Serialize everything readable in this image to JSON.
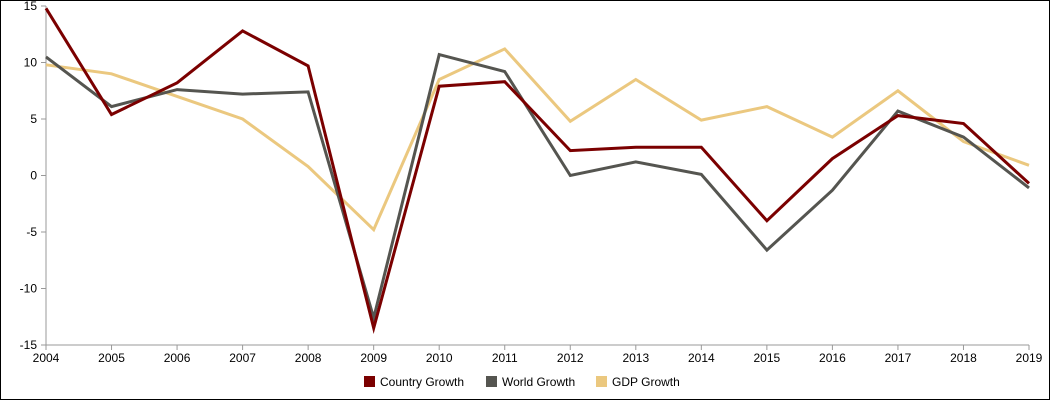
{
  "chart_data": {
    "type": "line",
    "x": [
      "2004",
      "2005",
      "2006",
      "2007",
      "2008",
      "2009",
      "2010",
      "2011",
      "2012",
      "2013",
      "2014",
      "2015",
      "2016",
      "2017",
      "2018",
      "2019"
    ],
    "ylim": [
      -15,
      15
    ],
    "yticks": [
      15,
      10,
      5,
      0,
      -5,
      -10,
      -15
    ],
    "ytick_labels": [
      "15",
      "10",
      "5",
      "0",
      "-5",
      "-10",
      "-15"
    ],
    "grid": false,
    "legend_position": "bottom",
    "series": [
      {
        "name": "Country Growth",
        "color": "#7b0000",
        "values": [
          14.8,
          5.4,
          8.2,
          12.8,
          9.7,
          -13.5,
          7.9,
          8.3,
          2.2,
          2.5,
          2.5,
          -4.0,
          1.5,
          5.3,
          4.6,
          -0.7
        ]
      },
      {
        "name": "World Growth",
        "color": "#555550",
        "values": [
          10.5,
          6.1,
          7.6,
          7.2,
          7.4,
          -12.6,
          10.7,
          9.2,
          0.0,
          1.2,
          0.1,
          -6.6,
          -1.3,
          5.7,
          3.4,
          -1.1
        ]
      },
      {
        "name": "GDP Growth",
        "color": "#ebc87f",
        "values": [
          9.8,
          9.0,
          7.0,
          5.0,
          0.8,
          -4.8,
          8.5,
          11.2,
          4.8,
          8.5,
          4.9,
          6.1,
          3.4,
          7.5,
          3.0,
          0.9
        ]
      }
    ]
  }
}
